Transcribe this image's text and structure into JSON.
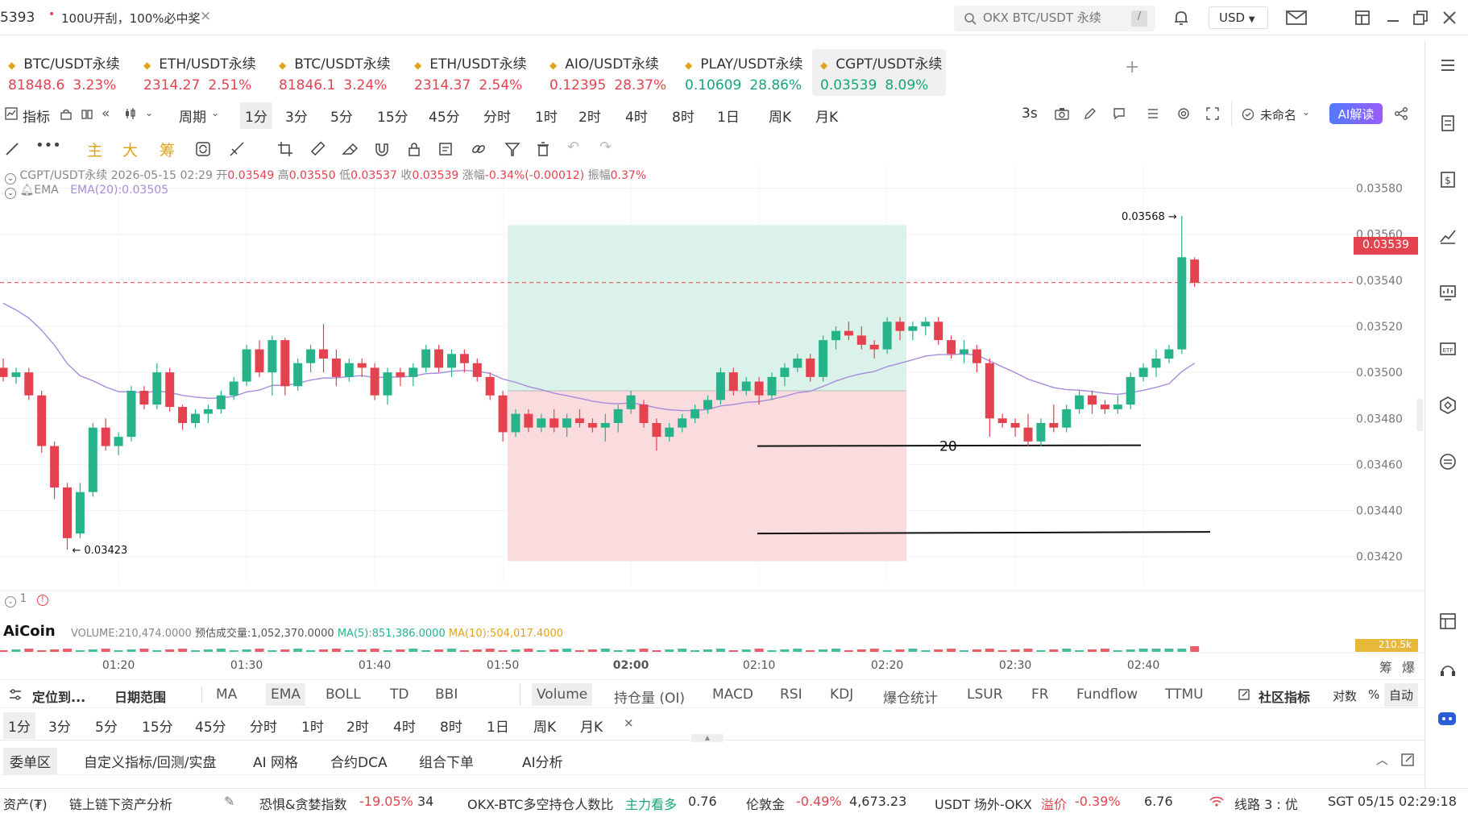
{
  "titlebar": {
    "tab_left": "5393",
    "tab_promo": "100U开刮，100%必中奖",
    "tab_close": "×",
    "search_placeholder": "OKX BTC/USDT 永续",
    "search_shortcut": "/",
    "currency": "USD"
  },
  "tickers": [
    {
      "name": "BTC/USDT永续",
      "price": "81848.6",
      "change": "3.23%",
      "dir": "dn",
      "icon": "ticker-icon"
    },
    {
      "name": "ETH/USDT永续",
      "price": "2314.27",
      "change": "2.51%",
      "dir": "dn",
      "icon": "ticker-icon"
    },
    {
      "name": "BTC/USDT永续",
      "price": "81846.1",
      "change": "3.24%",
      "dir": "dn",
      "icon": "ticker-icon"
    },
    {
      "name": "ETH/USDT永续",
      "price": "2314.37",
      "change": "2.54%",
      "dir": "dn",
      "icon": "ticker-icon"
    },
    {
      "name": "AIO/USDT永续",
      "price": "0.12395",
      "change": "28.37%",
      "dir": "dn",
      "icon": "ticker-icon"
    },
    {
      "name": "PLAY/USDT永续",
      "price": "0.10609",
      "change": "28.86%",
      "dir": "up",
      "icon": "ticker-icon"
    },
    {
      "name": "CGPT/USDT永续",
      "price": "0.03539",
      "change": "8.09%",
      "dir": "up",
      "icon": "ticker-icon"
    }
  ],
  "toolbar": {
    "indicator": "指标",
    "period": "周期",
    "intervals": [
      "1分",
      "3分",
      "5分",
      "15分",
      "45分",
      "分时",
      "1时",
      "2时",
      "4时",
      "8时",
      "1日",
      "周K",
      "月K"
    ],
    "refresh": "3s",
    "unnamed": "未命名",
    "ai_button": "AI解读"
  },
  "drawbar": {
    "labels": [
      "主",
      "大",
      "筹"
    ]
  },
  "chart_info": {
    "symbol": "CGPT/USDT永续",
    "datetime": "2026-05-15 02:29",
    "open_label": "开",
    "open": "0.03549",
    "high_label": "高",
    "high": "0.03550",
    "low_label": "低",
    "low": "0.03537",
    "close_label": "收",
    "close": "0.03539",
    "chg_label": "涨幅",
    "chg": "-0.34%(-0.00012)",
    "amp_label": "振幅",
    "amp": "0.37%",
    "ema_label": "EMA",
    "ema_value": "EMA(20):0.03505",
    "last_price": "0.03539",
    "high_mark": "0.03568",
    "low_mark": "0.03423",
    "annotation": "20",
    "pane_num": "1",
    "volume_label": "VOLUME:210,474.0000",
    "est_volume": "预估成交量:1,052,370.0000",
    "ma5": "MA(5):851,386.0000",
    "ma10": "MA(10):504,017.4000",
    "vol_tag": "210.5k",
    "logo": "AiCoin",
    "colors": {
      "up": "#26b389",
      "down": "#e5424f",
      "ema": "#a78bdc"
    }
  },
  "chart_data": {
    "type": "candlestick",
    "symbol": "CGPT/USDT永续",
    "interval": "1分",
    "y_ticks": [
      "0.03580",
      "0.03560",
      "0.03540",
      "0.03520",
      "0.03500",
      "0.03480",
      "0.03460",
      "0.03440",
      "0.03420"
    ],
    "x_ticks": [
      "01:20",
      "01:30",
      "01:40",
      "01:50",
      "02:00",
      "02:10",
      "02:20",
      "02:30",
      "02:40"
    ],
    "ylim": [
      0.03408,
      0.0359
    ],
    "candles": [
      [
        0.03502,
        0.03506,
        0.03496,
        0.03498
      ],
      [
        0.03498,
        0.03502,
        0.03495,
        0.035
      ],
      [
        0.035,
        0.03502,
        0.03488,
        0.0349
      ],
      [
        0.0349,
        0.03492,
        0.03465,
        0.03468
      ],
      [
        0.03468,
        0.0347,
        0.03445,
        0.0345
      ],
      [
        0.0345,
        0.03452,
        0.03423,
        0.03428
      ],
      [
        0.0343,
        0.03452,
        0.03428,
        0.03448
      ],
      [
        0.03448,
        0.03478,
        0.03446,
        0.03476
      ],
      [
        0.03476,
        0.0348,
        0.03466,
        0.03468
      ],
      [
        0.03468,
        0.03474,
        0.03464,
        0.03472
      ],
      [
        0.03472,
        0.03494,
        0.0347,
        0.03492
      ],
      [
        0.03492,
        0.03494,
        0.03484,
        0.03486
      ],
      [
        0.03486,
        0.03504,
        0.03484,
        0.035
      ],
      [
        0.035,
        0.03502,
        0.03483,
        0.03485
      ],
      [
        0.03485,
        0.03486,
        0.03475,
        0.03478
      ],
      [
        0.03478,
        0.03484,
        0.03476,
        0.03482
      ],
      [
        0.03482,
        0.03486,
        0.03478,
        0.03484
      ],
      [
        0.03484,
        0.03492,
        0.03482,
        0.0349
      ],
      [
        0.0349,
        0.03498,
        0.03488,
        0.03496
      ],
      [
        0.03496,
        0.03512,
        0.03494,
        0.0351
      ],
      [
        0.0351,
        0.03514,
        0.03498,
        0.035
      ],
      [
        0.035,
        0.03516,
        0.0349,
        0.03514
      ],
      [
        0.03514,
        0.03515,
        0.0349,
        0.03494
      ],
      [
        0.03494,
        0.03506,
        0.03492,
        0.03504
      ],
      [
        0.03504,
        0.03512,
        0.035,
        0.0351
      ],
      [
        0.0351,
        0.03521,
        0.035,
        0.03506
      ],
      [
        0.03506,
        0.0351,
        0.03494,
        0.03498
      ],
      [
        0.03498,
        0.03506,
        0.03496,
        0.03504
      ],
      [
        0.03504,
        0.03506,
        0.03498,
        0.03502
      ],
      [
        0.03502,
        0.03504,
        0.03488,
        0.0349
      ],
      [
        0.0349,
        0.03502,
        0.03486,
        0.035
      ],
      [
        0.035,
        0.03502,
        0.03494,
        0.03498
      ],
      [
        0.03498,
        0.03504,
        0.03494,
        0.03502
      ],
      [
        0.03502,
        0.03512,
        0.035,
        0.0351
      ],
      [
        0.0351,
        0.03512,
        0.035,
        0.03502
      ],
      [
        0.03502,
        0.0351,
        0.03498,
        0.03508
      ],
      [
        0.03508,
        0.0351,
        0.035,
        0.03504
      ],
      [
        0.03504,
        0.03506,
        0.03496,
        0.03498
      ],
      [
        0.03498,
        0.035,
        0.03488,
        0.0349
      ],
      [
        0.0349,
        0.03492,
        0.0347,
        0.03474
      ],
      [
        0.03474,
        0.03484,
        0.03472,
        0.03482
      ],
      [
        0.03482,
        0.03484,
        0.03474,
        0.03476
      ],
      [
        0.03476,
        0.03482,
        0.03474,
        0.0348
      ],
      [
        0.0348,
        0.03484,
        0.03474,
        0.03476
      ],
      [
        0.03476,
        0.03482,
        0.03472,
        0.0348
      ],
      [
        0.0348,
        0.03484,
        0.03476,
        0.03478
      ],
      [
        0.03478,
        0.0348,
        0.03474,
        0.03476
      ],
      [
        0.03476,
        0.03482,
        0.0347,
        0.03478
      ],
      [
        0.03478,
        0.03486,
        0.03474,
        0.03484
      ],
      [
        0.03484,
        0.03492,
        0.03482,
        0.0349
      ],
      [
        0.03486,
        0.03488,
        0.03476,
        0.03478
      ],
      [
        0.03478,
        0.0348,
        0.03466,
        0.03472
      ],
      [
        0.03472,
        0.03478,
        0.0347,
        0.03476
      ],
      [
        0.03476,
        0.03482,
        0.03474,
        0.0348
      ],
      [
        0.0348,
        0.03486,
        0.03478,
        0.03484
      ],
      [
        0.03484,
        0.0349,
        0.03482,
        0.03488
      ],
      [
        0.03488,
        0.03502,
        0.03486,
        0.035
      ],
      [
        0.035,
        0.03502,
        0.0349,
        0.03492
      ],
      [
        0.03492,
        0.03498,
        0.0349,
        0.03496
      ],
      [
        0.03496,
        0.03498,
        0.03486,
        0.0349
      ],
      [
        0.0349,
        0.035,
        0.03488,
        0.03498
      ],
      [
        0.03498,
        0.03504,
        0.03494,
        0.03502
      ],
      [
        0.03502,
        0.03508,
        0.035,
        0.03506
      ],
      [
        0.03506,
        0.03508,
        0.03496,
        0.03498
      ],
      [
        0.03498,
        0.03516,
        0.03496,
        0.03514
      ],
      [
        0.03514,
        0.0352,
        0.0351,
        0.03518
      ],
      [
        0.03518,
        0.03522,
        0.03514,
        0.03516
      ],
      [
        0.03516,
        0.0352,
        0.0351,
        0.03512
      ],
      [
        0.03512,
        0.03514,
        0.03506,
        0.0351
      ],
      [
        0.0351,
        0.03524,
        0.03508,
        0.03522
      ],
      [
        0.03522,
        0.03524,
        0.03514,
        0.03518
      ],
      [
        0.03518,
        0.03522,
        0.03514,
        0.0352
      ],
      [
        0.0352,
        0.03524,
        0.03516,
        0.03522
      ],
      [
        0.03522,
        0.03524,
        0.03512,
        0.03514
      ],
      [
        0.03514,
        0.03516,
        0.03506,
        0.03508
      ],
      [
        0.03508,
        0.03514,
        0.03504,
        0.0351
      ],
      [
        0.0351,
        0.03512,
        0.035,
        0.03504
      ],
      [
        0.03504,
        0.03506,
        0.03472,
        0.0348
      ],
      [
        0.0348,
        0.03482,
        0.03476,
        0.03478
      ],
      [
        0.03478,
        0.0348,
        0.03472,
        0.03476
      ],
      [
        0.03476,
        0.03482,
        0.03468,
        0.0347
      ],
      [
        0.0347,
        0.0348,
        0.03468,
        0.03478
      ],
      [
        0.03478,
        0.03486,
        0.03474,
        0.03476
      ],
      [
        0.03476,
        0.03486,
        0.03474,
        0.03484
      ],
      [
        0.03484,
        0.03492,
        0.03482,
        0.0349
      ],
      [
        0.0349,
        0.03492,
        0.03482,
        0.03486
      ],
      [
        0.03486,
        0.03488,
        0.03482,
        0.03484
      ],
      [
        0.03484,
        0.0349,
        0.03482,
        0.03486
      ],
      [
        0.03486,
        0.035,
        0.03484,
        0.03498
      ],
      [
        0.03498,
        0.03504,
        0.03496,
        0.03502
      ],
      [
        0.03502,
        0.0351,
        0.03498,
        0.03506
      ],
      [
        0.03506,
        0.03512,
        0.03504,
        0.0351
      ],
      [
        0.0351,
        0.03568,
        0.03508,
        0.0355
      ],
      [
        0.03549,
        0.0355,
        0.03537,
        0.03539
      ]
    ],
    "ema20_label": "EMA(20):0.03505",
    "highlight_high": 0.03568,
    "highlight_low": 0.03423,
    "position_tool": {
      "entry": 0.03492,
      "take_profit": 0.03564,
      "stop_loss": 0.03418
    },
    "hlines": [
      0.03468,
      0.0343
    ],
    "last_price": 0.03539
  },
  "indicators_row": {
    "locate": "定位到...",
    "date_range": "日期范围",
    "main": [
      "MA",
      "EMA",
      "BOLL",
      "TD",
      "BBI"
    ],
    "sub": [
      "Volume",
      "持仓量 (OI)",
      "MACD",
      "RSI",
      "KDJ",
      "爆仓统计",
      "LSUR",
      "FR",
      "Fundflow",
      "TTMU"
    ],
    "community": "社区指标",
    "log": "对数",
    "pct": "%",
    "auto": "自动"
  },
  "intervals_row": [
    "1分",
    "3分",
    "5分",
    "15分",
    "45分",
    "分时",
    "1时",
    "2时",
    "4时",
    "8时",
    "1日",
    "周K",
    "月K"
  ],
  "intervals_close": "×",
  "panel_tabs": [
    "委单区",
    "自定义指标/回测/实盘",
    "AI 网格",
    "合约DCA",
    "组合下单",
    "AI分析"
  ],
  "status": {
    "assets": "资产(₮)",
    "onchain": "链上链下资产分析",
    "fear_label": "恐惧&贪婪指数",
    "fear_chg": "-19.05%",
    "fear_val": "34",
    "ls_label": "OKX-BTC多空持仓人数比",
    "ls_tag": "主力看多",
    "ls_val": "0.76",
    "gold_label": "伦敦金",
    "gold_chg": "-0.49%",
    "gold_val": "4,673.23",
    "usdt_label": "USDT 场外-OKX",
    "usdt_prem": "溢价",
    "usdt_chg": "-0.39%",
    "usdt_val": "6.76",
    "line": "线路 3 : 优",
    "time": "SGT 05/15 02:29:18"
  },
  "axis_right_labels": [
    "筹",
    "爆"
  ]
}
